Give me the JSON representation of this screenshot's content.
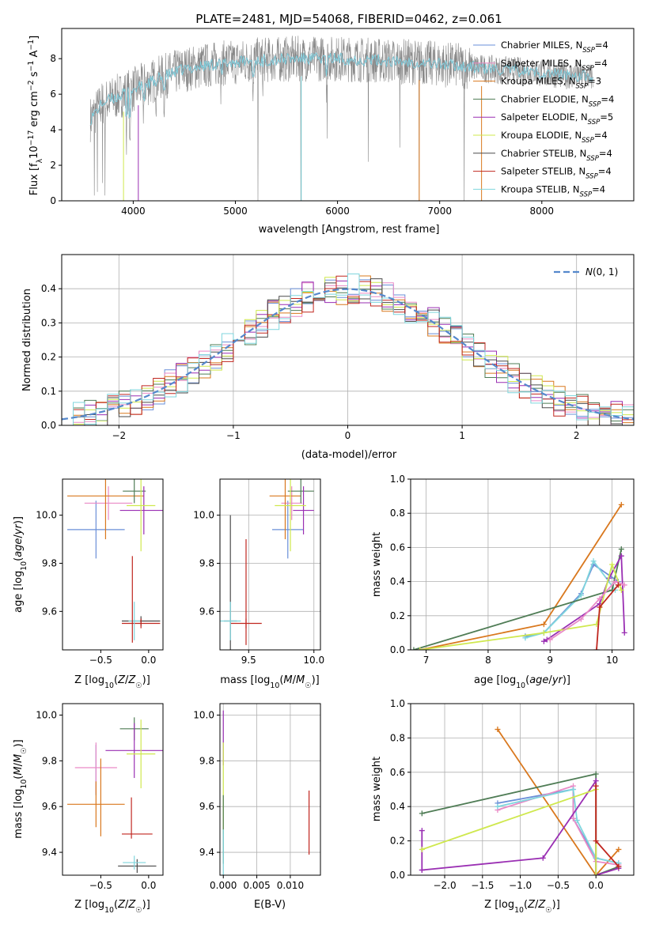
{
  "figure_title": "PLATE=2481, MJD=54068, FIBERID=0462, z=0.061",
  "colors": {
    "chab_miles": "#6a8fd8",
    "salp_miles": "#e98ac6",
    "krou_miles": "#d9781e",
    "chab_elodie": "#4f7c55",
    "salp_elodie": "#9a2fb3",
    "krou_elodie": "#cfe84e",
    "chab_stelib": "#4a4a4a",
    "salp_stelib": "#c0261f",
    "krou_stelib": "#7fd6dd",
    "data": "#888888",
    "gauss": "#5588cc"
  },
  "chart_data": [
    {
      "id": "spectrum",
      "type": "line",
      "title": "PLATE=2481, MJD=54068, FIBERID=0462, z=0.061",
      "xlabel": "wavelength [Angstrom, rest frame]",
      "ylabel": "Flux [f_λ 10^-17 erg cm^-2 s^-1 A^-1]",
      "xlim": [
        3300,
        8900
      ],
      "ylim": [
        0,
        9.7
      ],
      "xticks": [
        4000,
        5000,
        6000,
        7000,
        8000
      ],
      "yticks": [
        0,
        2,
        4,
        6,
        8
      ],
      "continuum": [
        [
          3580,
          4.6
        ],
        [
          3700,
          5.5
        ],
        [
          3900,
          6.0
        ],
        [
          4100,
          6.5
        ],
        [
          4300,
          7.0
        ],
        [
          4500,
          7.4
        ],
        [
          4800,
          7.7
        ],
        [
          5200,
          7.9
        ],
        [
          5600,
          8.0
        ],
        [
          6000,
          8.0
        ],
        [
          6400,
          7.9
        ],
        [
          6800,
          7.8
        ],
        [
          7200,
          7.6
        ],
        [
          7500,
          7.4
        ],
        [
          7800,
          7.3
        ],
        [
          8200,
          7.1
        ],
        [
          8500,
          6.95
        ]
      ],
      "series": [
        {
          "name": "Chabrier MILES, N_SSP=4"
        },
        {
          "name": "Salpeter MILES, N_SSP=4"
        },
        {
          "name": "Kroupa MILES, N_SSP=3"
        },
        {
          "name": "Chabrier ELODIE, N_SSP=4"
        },
        {
          "name": "Salpeter ELODIE, N_SSP=5"
        },
        {
          "name": "Kroupa ELODIE, N_SSP=4"
        },
        {
          "name": "Chabrier STELIB, N_SSP=4"
        },
        {
          "name": "Salpeter STELIB, N_SSP=4"
        },
        {
          "name": "Kroupa STELIB, N_SSP=4"
        }
      ],
      "legend": "upper right",
      "grid": false
    },
    {
      "id": "residuals",
      "type": "histogram",
      "xlabel": "(data-model)/error",
      "ylabel": "Normed distribution",
      "xlim": [
        -2.5,
        2.5
      ],
      "ylim": [
        0,
        0.5
      ],
      "xticks": [
        -2,
        -1,
        0,
        1,
        2
      ],
      "yticks": [
        0.0,
        0.1,
        0.2,
        0.3,
        0.4
      ],
      "bin_width": 0.1,
      "gaussian": {
        "name": "N(0,1)",
        "mu": 0,
        "sigma": 1
      },
      "legend": "upper right",
      "grid": true
    },
    {
      "id": "age_vs_z",
      "type": "errorbar",
      "xlabel": "Z [log10(Z/Z☉)]",
      "ylabel": "age [log10(age/yr)]",
      "xlim": [
        -0.9,
        0.15
      ],
      "ylim": [
        9.44,
        10.15
      ],
      "xticks": [
        -0.5,
        0.0
      ],
      "yticks": [
        9.6,
        9.8,
        10.0
      ],
      "points": [
        {
          "model": "chab_miles",
          "x": -0.55,
          "xerr": 0.3,
          "y": 9.94,
          "yerr": 0.12
        },
        {
          "model": "salp_miles",
          "x": -0.42,
          "xerr": 0.25,
          "y": 10.05,
          "yerr": 0.07
        },
        {
          "model": "krou_miles",
          "x": -0.45,
          "xerr": 0.4,
          "y": 10.08,
          "yerr": 0.18
        },
        {
          "model": "chab_elodie",
          "x": -0.15,
          "xerr": 0.12,
          "y": 10.1,
          "yerr": 0.05
        },
        {
          "model": "salp_elodie",
          "x": -0.05,
          "xerr": 0.25,
          "y": 10.02,
          "yerr": 0.1
        },
        {
          "model": "krou_elodie",
          "x": -0.08,
          "xerr": 0.15,
          "y": 10.04,
          "yerr": 0.19
        },
        {
          "model": "chab_stelib",
          "x": -0.08,
          "xerr": 0.2,
          "y": 9.56,
          "yerr": 0.02
        },
        {
          "model": "salp_stelib",
          "x": -0.08,
          "xerr": 0.2,
          "y": 9.55,
          "yerr": 0.02
        },
        {
          "model": "krou_stelib",
          "x": -0.15,
          "xerr": 0.06,
          "y": 9.56,
          "yerr": 0.08
        },
        {
          "model": "salp_stelib",
          "x": -0.17,
          "xerr": 0.0,
          "y": 9.65,
          "yerr": 0.18
        }
      ]
    },
    {
      "id": "age_vs_mass",
      "type": "errorbar",
      "xlabel": "mass [log10(M/M☉)]",
      "ylabel": "",
      "xlim": [
        9.28,
        10.05
      ],
      "ylim": [
        9.44,
        10.15
      ],
      "xticks": [
        9.5,
        10.0
      ],
      "yticks": [
        9.6,
        9.8,
        10.0
      ],
      "points": [
        {
          "model": "chab_miles",
          "x": 9.8,
          "xerr": 0.12,
          "y": 9.94,
          "yerr": 0.12
        },
        {
          "model": "salp_miles",
          "x": 9.83,
          "xerr": 0.08,
          "y": 10.05,
          "yerr": 0.07
        },
        {
          "model": "krou_miles",
          "x": 9.78,
          "xerr": 0.12,
          "y": 10.08,
          "yerr": 0.18
        },
        {
          "model": "chab_elodie",
          "x": 9.9,
          "xerr": 0.1,
          "y": 10.1,
          "yerr": 0.05
        },
        {
          "model": "salp_elodie",
          "x": 9.92,
          "xerr": 0.08,
          "y": 10.02,
          "yerr": 0.1
        },
        {
          "model": "krou_elodie",
          "x": 9.82,
          "xerr": 0.12,
          "y": 10.04,
          "yerr": 0.19
        },
        {
          "model": "chab_stelib",
          "x": 9.36,
          "xerr": 0.05,
          "y": 9.56,
          "yerr": 0.44
        },
        {
          "model": "salp_stelib",
          "x": 9.48,
          "xerr": 0.12,
          "y": 9.55,
          "yerr": 0.02
        },
        {
          "model": "krou_stelib",
          "x": 9.36,
          "xerr": 0.08,
          "y": 9.56,
          "yerr": 0.08
        },
        {
          "model": "salp_stelib",
          "x": 9.48,
          "xerr": 0.0,
          "y": 9.68,
          "yerr": 0.22
        }
      ]
    },
    {
      "id": "weight_vs_age",
      "type": "line",
      "xlabel": "age [log10(age/yr)]",
      "ylabel": "mass weight",
      "xlim": [
        6.75,
        10.35
      ],
      "ylim": [
        0,
        1.0
      ],
      "xticks": [
        7,
        8,
        9,
        10
      ],
      "yticks": [
        0.0,
        0.2,
        0.4,
        0.6,
        0.8,
        1.0
      ],
      "grid": true,
      "series": [
        {
          "model": "krou_miles",
          "x": [
            10.15,
            8.9,
            6.9
          ],
          "y": [
            0.85,
            0.15,
            0.0
          ]
        },
        {
          "model": "chab_miles",
          "x": [
            10.1,
            9.7,
            9.5,
            8.9,
            8.6
          ],
          "y": [
            0.4,
            0.5,
            0.33,
            0.1,
            0.08
          ]
        },
        {
          "model": "krou_stelib",
          "x": [
            10.05,
            9.7,
            9.5,
            8.9,
            8.6
          ],
          "y": [
            0.35,
            0.52,
            0.32,
            0.1,
            0.07
          ]
        },
        {
          "model": "chab_elodie",
          "x": [
            10.15,
            10.0,
            6.8
          ],
          "y": [
            0.59,
            0.35,
            0.0
          ]
        },
        {
          "model": "salp_elodie",
          "x": [
            10.2,
            10.15,
            9.95,
            9.8,
            8.95,
            8.9
          ],
          "y": [
            0.1,
            0.55,
            0.42,
            0.27,
            0.06,
            0.05
          ]
        },
        {
          "model": "krou_elodie",
          "x": [
            10.15,
            10.0,
            9.75,
            8.9,
            6.9
          ],
          "y": [
            0.35,
            0.5,
            0.15,
            0.1,
            0.0
          ]
        },
        {
          "model": "salp_miles",
          "x": [
            10.2,
            10.05,
            9.8,
            9.5,
            9.0
          ],
          "y": [
            0.38,
            0.4,
            0.3,
            0.18,
            0.06
          ]
        },
        {
          "model": "salp_stelib",
          "x": [
            10.1,
            9.8,
            9.75
          ],
          "y": [
            0.38,
            0.25,
            0.0
          ]
        }
      ]
    },
    {
      "id": "mass_vs_z",
      "type": "errorbar",
      "xlabel": "Z [log10(Z/Z☉)]",
      "ylabel": "mass [log10(M/M☉)]",
      "xlim": [
        -0.9,
        0.15
      ],
      "ylim": [
        9.3,
        10.05
      ],
      "xticks": [
        -0.5,
        0.0
      ],
      "yticks": [
        9.4,
        9.6,
        9.8,
        10.0
      ],
      "points": [
        {
          "model": "chab_miles",
          "x": -0.55,
          "xerr": 0.0,
          "y": 9.76,
          "yerr": 0.11
        },
        {
          "model": "salp_miles",
          "x": -0.55,
          "xerr": 0.22,
          "y": 9.77,
          "yerr": 0.11
        },
        {
          "model": "krou_miles",
          "x": -0.55,
          "xerr": 0.3,
          "y": 9.61,
          "yerr": 0.1
        },
        {
          "model": "krou_miles",
          "x": -0.5,
          "xerr": 0.0,
          "y": 9.64,
          "yerr": 0.17
        },
        {
          "model": "chab_elodie",
          "x": -0.15,
          "xerr": 0.15,
          "y": 9.94,
          "yerr": 0.05
        },
        {
          "model": "salp_elodie",
          "x": -0.15,
          "xerr": 0.3,
          "y": 9.845,
          "yerr": 0.12
        },
        {
          "model": "krou_elodie",
          "x": -0.08,
          "xerr": 0.15,
          "y": 9.83,
          "yerr": 0.15
        },
        {
          "model": "chab_stelib",
          "x": -0.12,
          "xerr": 0.2,
          "y": 9.34,
          "yerr": 0.03
        },
        {
          "model": "salp_stelib",
          "x": -0.12,
          "xerr": 0.16,
          "y": 9.48,
          "yerr": 0.0
        },
        {
          "model": "salp_stelib",
          "x": -0.18,
          "xerr": 0.0,
          "y": 9.55,
          "yerr": 0.09
        },
        {
          "model": "krou_stelib",
          "x": -0.15,
          "xerr": 0.12,
          "y": 9.355,
          "yerr": 0.03
        }
      ]
    },
    {
      "id": "mass_vs_ebv",
      "type": "errorbar",
      "xlabel": "E(B-V)",
      "ylabel": "",
      "xlim": [
        -0.0005,
        0.0145
      ],
      "ylim": [
        9.3,
        10.05
      ],
      "xticks": [
        0.0,
        0.005,
        0.01
      ],
      "xticklabels": [
        "0.000",
        "0.005",
        "0.010"
      ],
      "yticks": [
        9.4,
        9.6,
        9.8,
        10.0
      ],
      "points": [
        {
          "model": "salp_elodie",
          "x": 0.0,
          "xerr": 0.0,
          "y": 9.9,
          "yerr": 0.12
        },
        {
          "model": "krou_elodie",
          "x": 0.0,
          "xerr": 0.0,
          "y": 9.68,
          "yerr": 0.2
        },
        {
          "model": "chab_elodie",
          "x": 0.0,
          "xerr": 0.0,
          "y": 9.5,
          "yerr": 0.15
        },
        {
          "model": "krou_stelib",
          "x": 0.0,
          "xerr": 0.0,
          "y": 9.4,
          "yerr": 0.1
        },
        {
          "model": "salp_stelib",
          "x": 0.0128,
          "xerr": 0.0,
          "y": 9.53,
          "yerr": 0.14
        }
      ]
    },
    {
      "id": "weight_vs_z",
      "type": "line",
      "xlabel": "Z [log10(Z/Z☉)]",
      "ylabel": "mass weight",
      "xlim": [
        -2.45,
        0.5
      ],
      "ylim": [
        0,
        1.0
      ],
      "xticks": [
        -2.0,
        -1.5,
        -1.0,
        -0.5,
        0.0
      ],
      "yticks": [
        0.0,
        0.2,
        0.4,
        0.6,
        0.8,
        1.0
      ],
      "grid": true,
      "series": [
        {
          "model": "krou_miles",
          "x": [
            -1.3,
            0.0,
            0.3
          ],
          "y": [
            0.85,
            0.0,
            0.15
          ]
        },
        {
          "model": "chab_miles",
          "x": [
            -1.3,
            -0.3,
            -0.3,
            0.0,
            0.3
          ],
          "y": [
            0.42,
            0.5,
            0.33,
            0.1,
            0.07
          ]
        },
        {
          "model": "salp_miles",
          "x": [
            -1.3,
            -0.3,
            -0.3,
            0.0,
            0.3
          ],
          "y": [
            0.38,
            0.52,
            0.33,
            0.08,
            0.06
          ]
        },
        {
          "model": "krou_stelib",
          "x": [
            -1.3,
            -0.3,
            -0.25,
            0.0,
            0.3
          ],
          "y": [
            0.4,
            0.5,
            0.32,
            0.1,
            0.07
          ]
        },
        {
          "model": "chab_elodie",
          "x": [
            -2.3,
            0.0,
            0.0,
            0.3
          ],
          "y": [
            0.36,
            0.59,
            0.0,
            0.05
          ]
        },
        {
          "model": "salp_elodie",
          "x": [
            -2.3,
            -2.3,
            -2.3,
            -0.7,
            0.0,
            0.0,
            0.3
          ],
          "y": [
            0.03,
            0.26,
            0.03,
            0.1,
            0.55,
            0.0,
            0.04
          ]
        },
        {
          "model": "krou_elodie",
          "x": [
            -2.3,
            0.0,
            0.0
          ],
          "y": [
            0.15,
            0.5,
            0.0
          ]
        },
        {
          "model": "salp_stelib",
          "x": [
            0.3,
            0.0,
            0.0
          ],
          "y": [
            0.05,
            0.2,
            0.52
          ]
        }
      ]
    }
  ]
}
